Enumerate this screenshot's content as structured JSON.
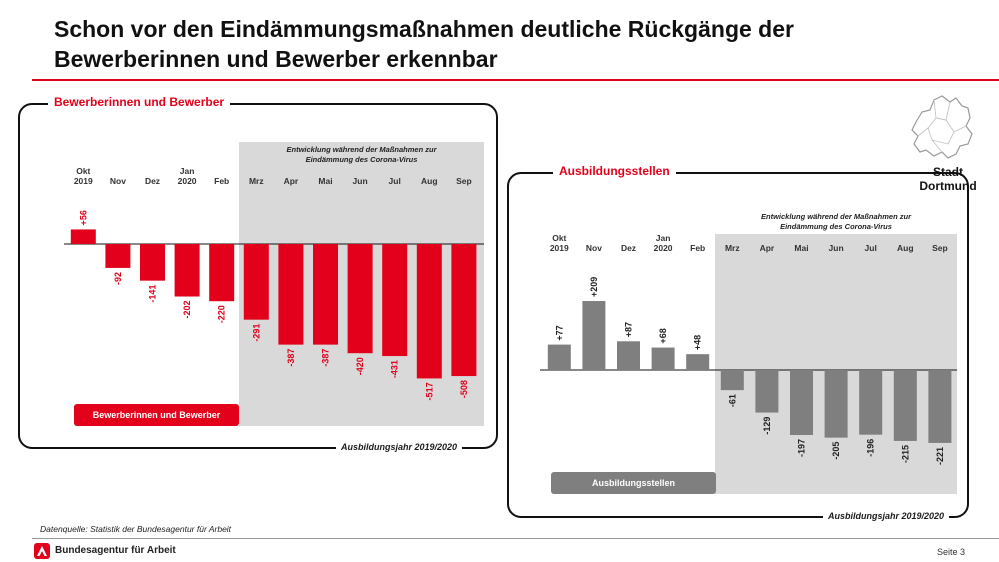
{
  "slide": {
    "title_line1": "Schon vor den Eindämmungsmaßnahmen deutliche Rückgänge der",
    "title_line2": "Bewerberinnen und Bewerber erkennbar",
    "stadt_line1": "Stadt",
    "stadt_line2": "Dortmund",
    "source": "Datenquelle: Statistik der Bundesagentur für Arbeit",
    "org": "Bundesagentur für Arbeit",
    "page": "Seite 3"
  },
  "colors": {
    "accent_red": "#e2001a",
    "bar_gray": "#7f7f7f",
    "shade": "#d9d9d9",
    "map_white": "#ffffff"
  },
  "chart_data": [
    {
      "type": "bar",
      "title": "Bewerberinnen und Bewerber",
      "categories": [
        [
          "Okt",
          "2019"
        ],
        [
          "Nov"
        ],
        [
          "Dez"
        ],
        [
          "Jan",
          "2020"
        ],
        [
          "Feb"
        ],
        [
          "Mrz"
        ],
        [
          "Apr"
        ],
        [
          "Mai"
        ],
        [
          "Jun"
        ],
        [
          "Jul"
        ],
        [
          "Aug"
        ],
        [
          "Sep"
        ]
      ],
      "values": [
        56,
        -92,
        -141,
        -202,
        -220,
        -291,
        -387,
        -387,
        -420,
        -431,
        -517,
        -508
      ],
      "value_labels": [
        "+56",
        "-92",
        "-141",
        "-202",
        "-220",
        "-291",
        "-387",
        "-387",
        "-420",
        "-431",
        "-517",
        "-508"
      ],
      "bar_color": "#e2001a",
      "shaded_from_index": 5,
      "shaded_note": [
        "Entwicklung während der Maßnahmen zur",
        "Eindämmung des Corona-Virus"
      ],
      "legend": "Bewerberinnen und Bewerber",
      "footer": "Ausbildungsjahr 2019/2020",
      "ylim": [
        -530,
        80
      ]
    },
    {
      "type": "bar",
      "title": "Ausbildungsstellen",
      "categories": [
        [
          "Okt",
          "2019"
        ],
        [
          "Nov"
        ],
        [
          "Dez"
        ],
        [
          "Jan",
          "2020"
        ],
        [
          "Feb"
        ],
        [
          "Mrz"
        ],
        [
          "Apr"
        ],
        [
          "Mai"
        ],
        [
          "Jun"
        ],
        [
          "Jul"
        ],
        [
          "Aug"
        ],
        [
          "Sep"
        ]
      ],
      "values": [
        77,
        209,
        87,
        68,
        48,
        -61,
        -129,
        -197,
        -205,
        -196,
        -215,
        -221
      ],
      "value_labels": [
        "+77",
        "+209",
        "+87",
        "+68",
        "+48",
        "-61",
        "-129",
        "-197",
        "-205",
        "-196",
        "-215",
        "-221"
      ],
      "bar_color": "#7f7f7f",
      "shaded_from_index": 5,
      "shaded_note": [
        "Entwicklung während der Maßnahmen zur",
        "Eindämmung des Corona-Virus"
      ],
      "legend": "Ausbildungsstellen",
      "footer": "Ausbildungsjahr 2019/2020",
      "ylim": [
        -230,
        230
      ]
    }
  ]
}
